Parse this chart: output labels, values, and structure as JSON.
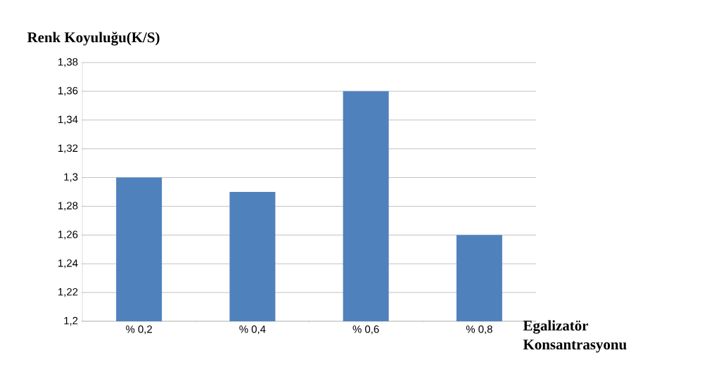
{
  "chart_data": {
    "type": "bar",
    "ylabel": "Renk Koyuluğu(K/S)",
    "xlabel": "Egalizatör Konsantrasyonu",
    "categories": [
      "% 0,2",
      "% 0,4",
      "% 0,6",
      "% 0,8"
    ],
    "values": [
      1.3,
      1.29,
      1.36,
      1.26
    ],
    "color": "#4f81bd",
    "ylim": [
      1.2,
      1.38
    ],
    "yticks": [
      {
        "value": 1.2,
        "label": "1,2"
      },
      {
        "value": 1.22,
        "label": "1,22"
      },
      {
        "value": 1.24,
        "label": "1,24"
      },
      {
        "value": 1.26,
        "label": "1,26"
      },
      {
        "value": 1.28,
        "label": "1,28"
      },
      {
        "value": 1.3,
        "label": "1,3"
      },
      {
        "value": 1.32,
        "label": "1,32"
      },
      {
        "value": 1.34,
        "label": "1,34"
      },
      {
        "value": 1.36,
        "label": "1,36"
      },
      {
        "value": 1.38,
        "label": "1,38"
      }
    ],
    "grid": "y"
  }
}
